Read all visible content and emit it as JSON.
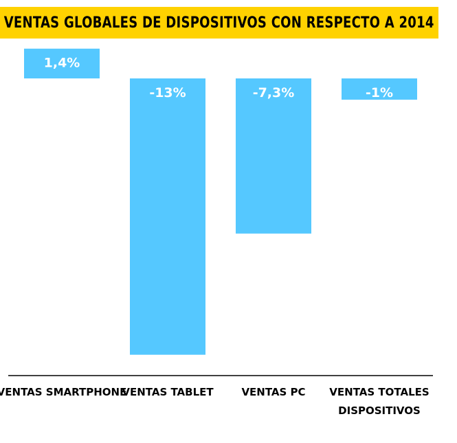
{
  "chart_data": {
    "type": "bar",
    "title": "VENTAS GLOBALES DE DISPOSITIVOS CON RESPECTO A 2014",
    "categories": [
      [
        "VENTAS SMARTPHONE"
      ],
      [
        "VENTAS TABLET"
      ],
      [
        "VENTAS PC"
      ],
      [
        "VENTAS TOTALES",
        "DISPOSITIVOS"
      ]
    ],
    "values": [
      1.4,
      -13,
      -7.3,
      -1
    ],
    "data_labels": [
      "1,4%",
      "-13%",
      "-7,3%",
      "-1%"
    ],
    "unit": "%",
    "ylim": [
      -13,
      1.4
    ],
    "grid": false,
    "legend": "none"
  },
  "colors": {
    "bar": "#55C8FF",
    "title_bg": "#FFD200",
    "axis": "#000000",
    "label_text": "#ffffff"
  }
}
